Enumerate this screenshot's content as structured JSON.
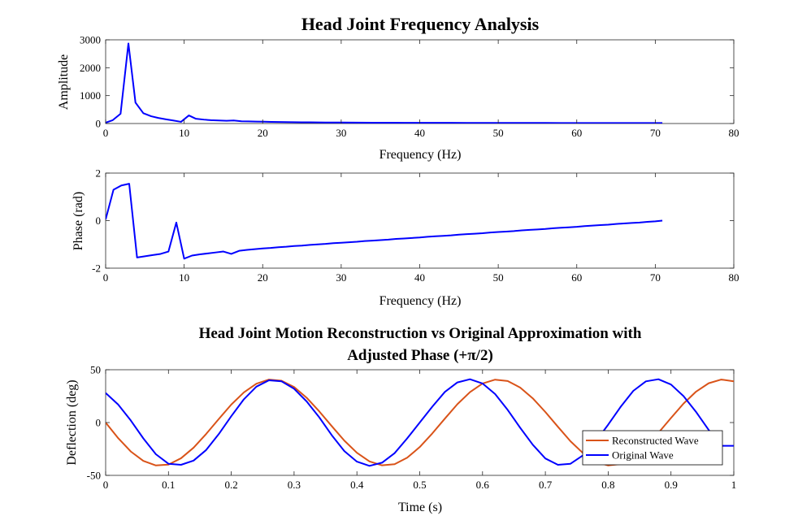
{
  "chart_data": [
    {
      "type": "line",
      "title": "Head Joint Frequency Analysis",
      "xlabel": "Frequency (Hz)",
      "ylabel": "Amplitude",
      "xlim": [
        0,
        80
      ],
      "ylim": [
        0,
        3000
      ],
      "xticks": [
        0,
        10,
        20,
        30,
        40,
        50,
        60,
        70,
        80
      ],
      "yticks": [
        0,
        1000,
        2000,
        3000
      ],
      "series": [
        {
          "color": "#0000ff",
          "x": [
            0,
            0.9,
            1.9,
            2.9,
            3.8,
            4.8,
            5.8,
            6.7,
            7.7,
            8.6,
            9.6,
            10.6,
            11.5,
            12.5,
            13.4,
            14.4,
            15.4,
            16.3,
            17.3,
            18.2,
            19.2,
            20.2,
            21.1,
            22.1,
            23.0,
            24.0,
            25.0,
            26.0,
            28.0,
            30.0,
            32.0,
            34.0,
            36.0,
            38.0,
            40.0,
            42.0,
            44.0,
            46.0,
            48.0,
            50.0,
            52.0,
            54.0,
            56.0,
            58.0,
            60.0,
            62.0,
            64.0,
            66.0,
            68.0,
            70.0,
            70.9
          ],
          "y": [
            30,
            120,
            350,
            2870,
            750,
            370,
            260,
            200,
            150,
            110,
            60,
            290,
            170,
            140,
            120,
            110,
            100,
            110,
            80,
            75,
            70,
            65,
            60,
            55,
            50,
            48,
            45,
            42,
            38,
            35,
            33,
            31,
            29,
            27,
            26,
            25,
            24,
            23,
            22,
            21,
            21,
            20,
            20,
            19,
            19,
            18,
            18,
            18,
            17,
            17,
            17
          ]
        }
      ]
    },
    {
      "type": "line",
      "title": "",
      "xlabel": "Frequency (Hz)",
      "ylabel": "Phase (rad)",
      "xlim": [
        0,
        80
      ],
      "ylim": [
        -2,
        2
      ],
      "xticks": [
        0,
        10,
        20,
        30,
        40,
        50,
        60,
        70,
        80
      ],
      "yticks": [
        -2,
        0,
        2
      ],
      "series": [
        {
          "color": "#0000ff",
          "x": [
            0,
            1,
            2,
            3,
            4,
            5,
            6,
            7,
            8,
            9,
            10,
            11,
            12,
            13,
            14,
            15,
            16,
            17,
            18,
            19,
            20,
            21,
            22,
            23,
            24,
            25,
            26,
            27,
            28,
            29,
            30,
            31,
            32,
            33,
            34,
            35,
            36,
            37,
            38,
            39,
            40,
            41,
            42,
            43,
            44,
            45,
            46,
            47,
            48,
            49,
            50,
            51,
            52,
            53,
            54,
            55,
            56,
            57,
            58,
            59,
            60,
            61,
            62,
            63,
            64,
            65,
            66,
            67,
            68,
            69,
            70,
            70.9
          ],
          "y": [
            0.05,
            1.3,
            1.48,
            1.55,
            -1.55,
            -1.5,
            -1.45,
            -1.4,
            -1.3,
            -0.08,
            -1.6,
            -1.47,
            -1.42,
            -1.38,
            -1.34,
            -1.3,
            -1.4,
            -1.27,
            -1.23,
            -1.2,
            -1.17,
            -1.15,
            -1.12,
            -1.1,
            -1.07,
            -1.05,
            -1.02,
            -1.0,
            -0.98,
            -0.95,
            -0.93,
            -0.91,
            -0.89,
            -0.86,
            -0.84,
            -0.82,
            -0.8,
            -0.77,
            -0.75,
            -0.73,
            -0.71,
            -0.68,
            -0.66,
            -0.64,
            -0.62,
            -0.59,
            -0.57,
            -0.55,
            -0.53,
            -0.5,
            -0.48,
            -0.46,
            -0.44,
            -0.41,
            -0.39,
            -0.37,
            -0.35,
            -0.32,
            -0.3,
            -0.28,
            -0.26,
            -0.23,
            -0.21,
            -0.19,
            -0.17,
            -0.14,
            -0.12,
            -0.1,
            -0.08,
            -0.05,
            -0.03,
            0.0
          ]
        }
      ]
    },
    {
      "type": "line",
      "title": "Head Joint Motion Reconstruction vs Original Approximation with",
      "title_line2": "Adjusted Phase (+π/2)",
      "xlabel": "Time (s)",
      "ylabel": "Deflection (deg)",
      "xlim": [
        0,
        1
      ],
      "ylim": [
        -50,
        50
      ],
      "xticks": [
        0,
        0.1,
        0.2,
        0.3,
        0.4,
        0.5,
        0.6,
        0.7,
        0.8,
        0.9,
        1
      ],
      "yticks": [
        -50,
        0,
        50
      ],
      "legend_position": "lower-right",
      "series": [
        {
          "name": "Reconstructed Wave",
          "color": "#d95319",
          "x": [
            0,
            0.02,
            0.04,
            0.06,
            0.08,
            0.1,
            0.12,
            0.14,
            0.16,
            0.18,
            0.2,
            0.22,
            0.24,
            0.26,
            0.28,
            0.3,
            0.32,
            0.34,
            0.36,
            0.38,
            0.4,
            0.42,
            0.44,
            0.46,
            0.48,
            0.5,
            0.52,
            0.54,
            0.56,
            0.58,
            0.6,
            0.62,
            0.64,
            0.66,
            0.68,
            0.7,
            0.72,
            0.74,
            0.76,
            0.78,
            0.8,
            0.82,
            0.84,
            0.86,
            0.88,
            0.9,
            0.92,
            0.94,
            0.96,
            0.98,
            1.0
          ],
          "y": [
            0,
            -14.8,
            -27.4,
            -36.3,
            -40.6,
            -39.8,
            -33.8,
            -23.8,
            -10.8,
            3.3,
            17.0,
            28.5,
            36.8,
            40.7,
            39.6,
            33.6,
            23.5,
            10.6,
            -3.4,
            -17.1,
            -28.6,
            -36.8,
            -40.5,
            -39.4,
            -33.3,
            -23.2,
            -10.3,
            3.7,
            17.4,
            28.8,
            37.0,
            40.6,
            39.3,
            33.1,
            22.9,
            10.0,
            -4.0,
            -17.7,
            -29.0,
            -37.1,
            -40.6,
            -39.2,
            -32.9,
            -22.7,
            -9.7,
            4.3,
            18.0,
            29.3,
            37.2,
            40.7,
            39.0
          ]
        },
        {
          "name": "Original Wave",
          "color": "#0000ff",
          "x": [
            0,
            0.02,
            0.04,
            0.06,
            0.08,
            0.1,
            0.12,
            0.14,
            0.16,
            0.18,
            0.2,
            0.22,
            0.24,
            0.26,
            0.28,
            0.3,
            0.32,
            0.34,
            0.36,
            0.38,
            0.4,
            0.42,
            0.44,
            0.46,
            0.48,
            0.5,
            0.52,
            0.54,
            0.56,
            0.58,
            0.6,
            0.62,
            0.64,
            0.66,
            0.68,
            0.7,
            0.72,
            0.74,
            0.76,
            0.78,
            0.8,
            0.82,
            0.84,
            0.86,
            0.88,
            0.9,
            0.92,
            0.94,
            0.96,
            0.98,
            1.0
          ],
          "y": [
            28,
            17,
            2,
            -15,
            -30,
            -39,
            -40,
            -36,
            -26,
            -11,
            6,
            22,
            34,
            40,
            39,
            32,
            20,
            5,
            -12,
            -27,
            -37,
            -41,
            -38,
            -29,
            -15,
            0,
            15,
            29,
            38,
            41,
            37,
            27,
            12,
            -5,
            -21,
            -34,
            -40,
            -39,
            -31,
            -18,
            -2,
            15,
            30,
            39,
            41,
            36,
            25,
            10,
            -7,
            -22,
            -22
          ]
        }
      ]
    }
  ]
}
